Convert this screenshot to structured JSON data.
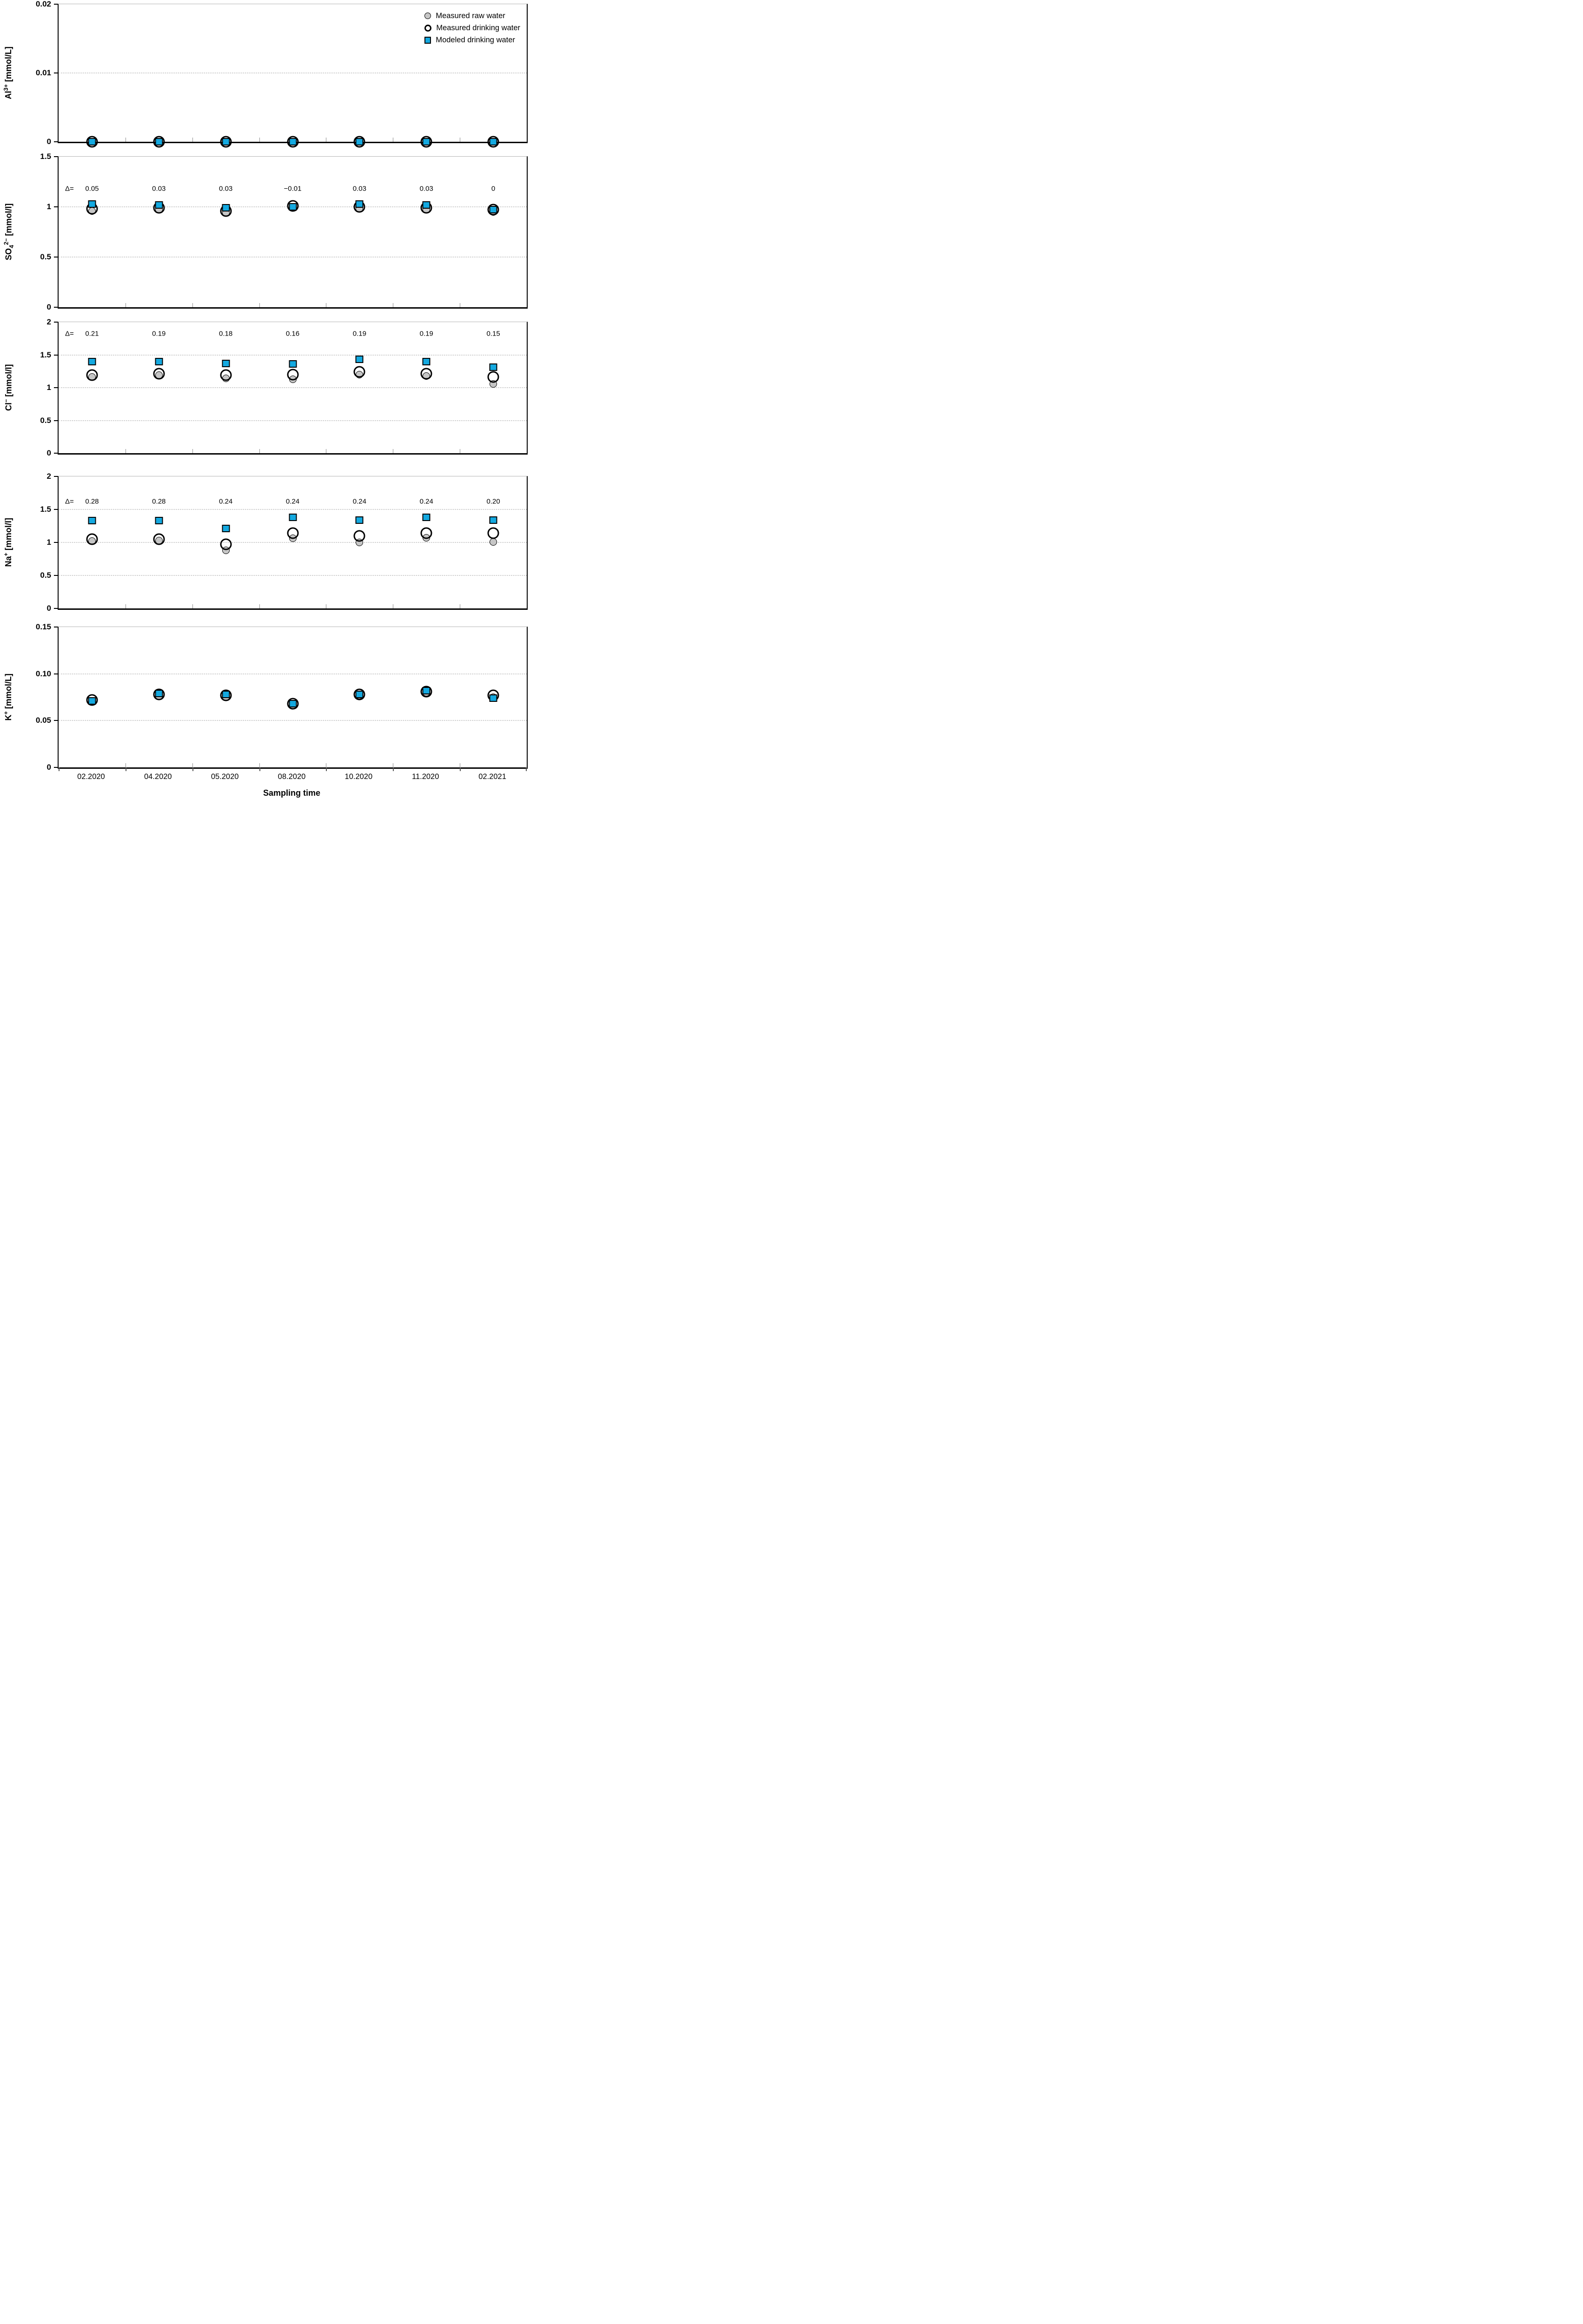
{
  "chart_data": {
    "type": "scatter",
    "categories": [
      "02.2020",
      "04.2020",
      "05.2020",
      "08.2020",
      "10.2020",
      "11.2020",
      "02.2021"
    ],
    "xlabel": "Sampling time",
    "grid": "horizontal dotted gridlines at major y ticks",
    "colors": {
      "modeled_blue": "#14a9e0",
      "raw_gray": "#c6c6c6",
      "marker_edge": "#000000"
    },
    "legend": {
      "position": "inside top-right of first panel",
      "entries": [
        {
          "key": "raw",
          "label": "Measured raw water",
          "marker": "filled-gray-circle"
        },
        {
          "key": "measured",
          "label": "Measured drinking water",
          "marker": "open-black-circle"
        },
        {
          "key": "modeled",
          "label": "Modeled drinking water",
          "marker": "filled-blue-square"
        }
      ]
    },
    "delta_prefix": "Δ=",
    "panels": [
      {
        "analyte": "Al3+",
        "ylabel_parts": {
          "pre": "Al",
          "sub": "",
          "sup": "3+",
          "post": " [mmol/L]"
        },
        "ylim": [
          0,
          0.02
        ],
        "yticks": [
          {
            "value": 0,
            "label": "0"
          },
          {
            "value": 0.01,
            "label": "0.01"
          },
          {
            "value": 0.02,
            "label": "0.02"
          }
        ],
        "gridlines": [
          0.01
        ],
        "series": {
          "raw": [
            0,
            0,
            0,
            0,
            0,
            0,
            0
          ],
          "measured": [
            0,
            0,
            0,
            0,
            0,
            0,
            0
          ],
          "modeled": [
            0,
            0,
            0,
            0,
            0,
            0,
            0
          ]
        },
        "deltas": null
      },
      {
        "analyte": "SO4 2-",
        "ylabel_parts": {
          "pre": "SO",
          "sub": "4",
          "sup": "2−",
          "post": " [mmol/l]"
        },
        "ylim": [
          0,
          1.5
        ],
        "yticks": [
          {
            "value": 0,
            "label": "0"
          },
          {
            "value": 0.5,
            "label": "0.5"
          },
          {
            "value": 1,
            "label": "1"
          },
          {
            "value": 1.5,
            "label": "1.5"
          }
        ],
        "gridlines": [
          0.5,
          1
        ],
        "series": {
          "raw": [
            0.96,
            0.97,
            0.94,
            0.99,
            0.98,
            0.97,
            0.95
          ],
          "measured": [
            0.98,
            0.99,
            0.96,
            1.01,
            1.0,
            0.99,
            0.97
          ],
          "modeled": [
            1.03,
            1.02,
            0.99,
            1.0,
            1.03,
            1.02,
            0.97
          ]
        },
        "deltas": {
          "y": 1.18,
          "values": [
            "0.05",
            "0.03",
            "0.03",
            "−0.01",
            "0.03",
            "0.03",
            "0"
          ]
        }
      },
      {
        "analyte": "Cl-",
        "ylabel_parts": {
          "pre": "Cl",
          "sub": "",
          "sup": "−",
          "post": " [mmol/l]"
        },
        "ylim": [
          0,
          2
        ],
        "yticks": [
          {
            "value": 0,
            "label": "0"
          },
          {
            "value": 0.5,
            "label": "0.5"
          },
          {
            "value": 1,
            "label": "1"
          },
          {
            "value": 1.5,
            "label": "1.5"
          },
          {
            "value": 2,
            "label": "2"
          }
        ],
        "gridlines": [
          0.5,
          1,
          1.5
        ],
        "series": {
          "raw": [
            1.16,
            1.19,
            1.14,
            1.13,
            1.2,
            1.18,
            1.06
          ],
          "measured": [
            1.19,
            1.21,
            1.19,
            1.2,
            1.24,
            1.21,
            1.16
          ],
          "modeled": [
            1.4,
            1.4,
            1.37,
            1.36,
            1.43,
            1.4,
            1.31
          ]
        },
        "deltas": {
          "y": 1.82,
          "values": [
            "0.21",
            "0.19",
            "0.18",
            "0.16",
            "0.19",
            "0.19",
            "0.15"
          ]
        }
      },
      {
        "analyte": "Na+",
        "ylabel_parts": {
          "pre": "Na",
          "sub": "",
          "sup": "+",
          "post": " [mmol/l]"
        },
        "ylim": [
          0,
          2
        ],
        "yticks": [
          {
            "value": 0,
            "label": "0"
          },
          {
            "value": 0.5,
            "label": "0.5"
          },
          {
            "value": 1,
            "label": "1"
          },
          {
            "value": 1.5,
            "label": "1.5"
          },
          {
            "value": 2,
            "label": "2"
          }
        ],
        "gridlines": [
          0.5,
          1,
          1.5
        ],
        "series": {
          "raw": [
            1.02,
            1.03,
            0.88,
            1.06,
            1.0,
            1.07,
            1.01
          ],
          "measured": [
            1.05,
            1.05,
            0.97,
            1.14,
            1.1,
            1.14,
            1.14
          ],
          "modeled": [
            1.33,
            1.33,
            1.21,
            1.38,
            1.34,
            1.38,
            1.34
          ]
        },
        "deltas": {
          "y": 1.62,
          "values": [
            "0.28",
            "0.28",
            "0.24",
            "0.24",
            "0.24",
            "0.24",
            "0.20"
          ]
        }
      },
      {
        "analyte": "K+",
        "ylabel_parts": {
          "pre": "K",
          "sub": "",
          "sup": "+",
          "post": " [mmol/L]"
        },
        "ylim": [
          0,
          0.15
        ],
        "yticks": [
          {
            "value": 0,
            "label": "0"
          },
          {
            "value": 0.05,
            "label": "0.05"
          },
          {
            "value": 0.1,
            "label": "0.10"
          },
          {
            "value": 0.15,
            "label": "0.15"
          }
        ],
        "gridlines": [
          0.05,
          0.1
        ],
        "series": {
          "raw": [
            0.07,
            0.076,
            0.075,
            0.066,
            0.077,
            0.08,
            0.075
          ],
          "measured": [
            0.072,
            0.078,
            0.077,
            0.068,
            0.078,
            0.081,
            0.077
          ],
          "modeled": [
            0.071,
            0.079,
            0.078,
            0.068,
            0.078,
            0.082,
            0.074
          ]
        },
        "deltas": null
      }
    ]
  }
}
